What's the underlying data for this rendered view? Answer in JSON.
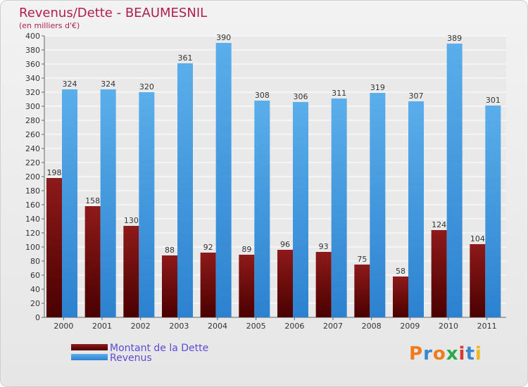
{
  "chart_data": {
    "type": "bar",
    "title": "Revenus/Dette - BEAUMESNIL",
    "subtitle": "(en milliers d'€)",
    "categories": [
      "2000",
      "2001",
      "2002",
      "2003",
      "2004",
      "2005",
      "2006",
      "2007",
      "2008",
      "2009",
      "2010",
      "2011"
    ],
    "series": [
      {
        "name": "Montant de la Dette",
        "color": "#7a0a0a",
        "values": [
          198,
          158,
          130,
          88,
          92,
          89,
          96,
          93,
          75,
          58,
          124,
          104
        ]
      },
      {
        "name": "Revenus",
        "color": "#3a93dd",
        "values": [
          324,
          324,
          320,
          361,
          390,
          308,
          306,
          311,
          319,
          307,
          389,
          301
        ]
      }
    ],
    "ylim": [
      0,
      400
    ],
    "yticks": [
      0,
      20,
      40,
      60,
      80,
      100,
      120,
      140,
      160,
      180,
      200,
      220,
      240,
      260,
      280,
      300,
      320,
      340,
      360,
      380,
      400
    ],
    "grid": true,
    "legend_position": "bottom-left"
  },
  "logo": {
    "letters": [
      "P",
      "r",
      "o",
      "x",
      "i",
      "t",
      "i"
    ],
    "colors": [
      "#f07b1a",
      "#3a86d0",
      "#f07b1a",
      "#2aa84a",
      "#d63a2e",
      "#3a86d0",
      "#f0b71a"
    ]
  }
}
